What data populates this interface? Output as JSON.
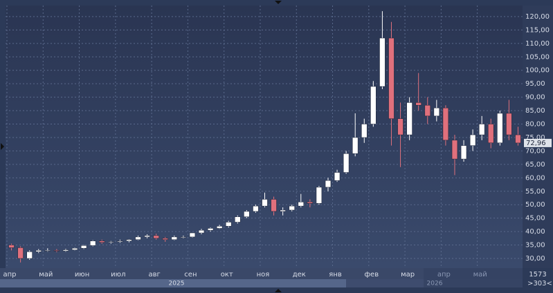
{
  "chart_data": {
    "type": "candlestick",
    "categories": [
      "апр",
      null,
      null,
      null,
      "май",
      null,
      null,
      null,
      "июн",
      null,
      null,
      null,
      "июл",
      null,
      null,
      null,
      "авг",
      null,
      null,
      null,
      "сен",
      null,
      null,
      null,
      "окт",
      null,
      null,
      null,
      "ноя",
      null,
      null,
      null,
      "дек",
      null,
      null,
      null,
      "янв",
      null,
      null,
      null,
      "фев",
      null,
      null,
      null,
      "мар",
      null,
      null,
      null,
      "апр",
      null,
      null,
      null,
      "май",
      null,
      null,
      null,
      null
    ],
    "open": [
      35,
      34,
      30,
      32.5,
      33,
      33,
      32.8,
      33.2,
      33.8,
      34.8,
      36.5,
      36,
      36.2,
      36.5,
      37,
      38,
      38.5,
      37.5,
      37,
      38,
      38,
      39.5,
      40.5,
      41.2,
      42,
      43.5,
      45.5,
      47.5,
      49.5,
      52,
      47.5,
      48,
      49.5,
      51,
      50.5,
      56.5,
      59,
      62,
      69,
      75,
      80,
      94,
      112,
      82,
      76,
      88,
      87,
      83,
      86,
      74,
      67,
      72,
      76,
      80,
      73,
      84,
      76
    ],
    "high": [
      35.5,
      34.5,
      33,
      33.5,
      33.8,
      33.5,
      33.6,
      34,
      35,
      36.8,
      37,
      36.5,
      37,
      37.2,
      38.5,
      39,
      39.2,
      38,
      38.5,
      38.5,
      39.5,
      41,
      41.5,
      42.5,
      44,
      46,
      48,
      50,
      54.5,
      53,
      49,
      50,
      54,
      52,
      57,
      60,
      63,
      70,
      84,
      82,
      96,
      122,
      118,
      88,
      90,
      99,
      90,
      89,
      87,
      76,
      74,
      78,
      83,
      82,
      85,
      89,
      79
    ],
    "low": [
      33,
      28.5,
      29.5,
      32,
      32.5,
      32.3,
      32.5,
      33,
      33.5,
      34.5,
      35.5,
      35.5,
      35.8,
      36,
      36.8,
      37.5,
      37,
      36.2,
      36.8,
      37.5,
      37.8,
      39,
      40,
      41,
      41.5,
      43,
      45,
      47,
      49,
      46,
      46,
      47.5,
      49,
      49,
      50,
      55,
      58.5,
      61.5,
      68,
      73,
      79,
      93,
      72,
      64,
      74,
      85,
      80,
      81,
      72,
      61,
      66,
      70,
      74,
      71,
      72,
      74,
      72
    ],
    "close": [
      34,
      30,
      32.5,
      33,
      33,
      32.8,
      33.2,
      33.8,
      34.8,
      36.5,
      36,
      36.2,
      36.5,
      37,
      38,
      38.5,
      37.5,
      37,
      38,
      38,
      39.5,
      40.5,
      41.2,
      42,
      43.5,
      45.5,
      47.5,
      49.5,
      52,
      47.5,
      48,
      49.5,
      51,
      50.5,
      56.5,
      59,
      62,
      69,
      75,
      80,
      94,
      112,
      82,
      76,
      88,
      87,
      83,
      86,
      74,
      67,
      72,
      76,
      80,
      73,
      84,
      76,
      72.96
    ],
    "up_color": "#ffffff",
    "down_color": "#e0707c",
    "ylim": [
      26.4,
      124.1
    ],
    "yticks": [
      {
        "value": 30,
        "label": "30,00"
      },
      {
        "value": 35,
        "label": "35,00"
      },
      {
        "value": 40,
        "label": "40,00"
      },
      {
        "value": 45,
        "label": "45,00"
      },
      {
        "value": 50,
        "label": "50,00"
      },
      {
        "value": 55,
        "label": "55,00"
      },
      {
        "value": 60,
        "label": "60,00"
      },
      {
        "value": 65,
        "label": "65,00"
      },
      {
        "value": 70,
        "label": "70,00"
      },
      {
        "value": 75,
        "label": "75,00"
      },
      {
        "value": 80,
        "label": "80,00"
      },
      {
        "value": 85,
        "label": "85,00"
      },
      {
        "value": 90,
        "label": "90,00"
      },
      {
        "value": 95,
        "label": "95,00"
      },
      {
        "value": 100,
        "label": "100,00"
      },
      {
        "value": 105,
        "label": "105,00"
      },
      {
        "value": 110,
        "label": "110,00"
      },
      {
        "value": 115,
        "label": "115,00"
      },
      {
        "value": 120,
        "label": "120,00"
      }
    ],
    "last_price": {
      "value": 72.96,
      "label": "72,96"
    },
    "year_labels": [
      "2025",
      "2026"
    ],
    "grid": true
  },
  "status": {
    "count": "1573",
    "range": ">303<"
  }
}
